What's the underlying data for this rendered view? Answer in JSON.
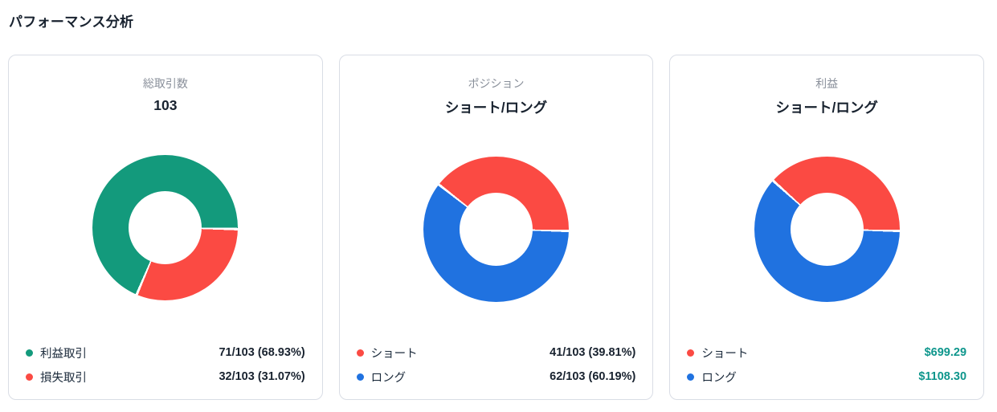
{
  "page": {
    "title": "パフォーマンス分析"
  },
  "colors": {
    "profit_green": "#139a7c",
    "loss_red": "#fb4a43",
    "long_blue": "#2072e0",
    "money_teal": "#0e968c",
    "text_dark": "#18222f",
    "text_muted": "#8a909b",
    "card_border": "#d9dde5",
    "card_bg": "#ffffff"
  },
  "cards": [
    {
      "subtitle": "総取引数",
      "value": "103",
      "legend": [
        {
          "label": "利益取引",
          "value": "71/103 (68.93%)"
        },
        {
          "label": "損失取引",
          "value": "32/103 (31.07%)"
        }
      ]
    },
    {
      "subtitle": "ポジション",
      "value": "ショート/ロング",
      "legend": [
        {
          "label": "ショート",
          "value": "41/103 (39.81%)"
        },
        {
          "label": "ロング",
          "value": "62/103 (60.19%)"
        }
      ]
    },
    {
      "subtitle": "利益",
      "value": "ショート/ロング",
      "legend": [
        {
          "label": "ショート",
          "value": "$699.29"
        },
        {
          "label": "ロング",
          "value": "$1108.30"
        }
      ]
    }
  ],
  "chart_data": [
    {
      "type": "pie",
      "variant": "donut",
      "title": "総取引数 103",
      "labels": [
        "利益取引",
        "損失取引"
      ],
      "values": [
        71,
        32
      ],
      "total": 103,
      "percentages": [
        68.93,
        31.07
      ],
      "colors": [
        "#139a7c",
        "#fb4a43"
      ],
      "rotation": 203,
      "hole": 0.5,
      "legend_position": "bottom-custom"
    },
    {
      "type": "pie",
      "variant": "donut",
      "title": "ポジション ショート/ロング",
      "labels": [
        "ショート",
        "ロング"
      ],
      "values": [
        41,
        62
      ],
      "total": 103,
      "percentages": [
        39.81,
        60.19
      ],
      "colors": [
        "#fb4a43",
        "#2072e0"
      ],
      "rotation": 308,
      "hole": 0.5,
      "legend_position": "bottom-custom"
    },
    {
      "type": "pie",
      "variant": "donut",
      "title": "利益 ショート/ロング",
      "labels": [
        "ショート",
        "ロング"
      ],
      "values": [
        699.29,
        1108.3
      ],
      "display_values": [
        "$699.29",
        "$1108.30"
      ],
      "unit": "USD",
      "percentages": [
        38.69,
        61.31
      ],
      "colors": [
        "#fb4a43",
        "#2072e0"
      ],
      "rotation": 312,
      "hole": 0.5,
      "legend_position": "bottom-custom"
    }
  ]
}
